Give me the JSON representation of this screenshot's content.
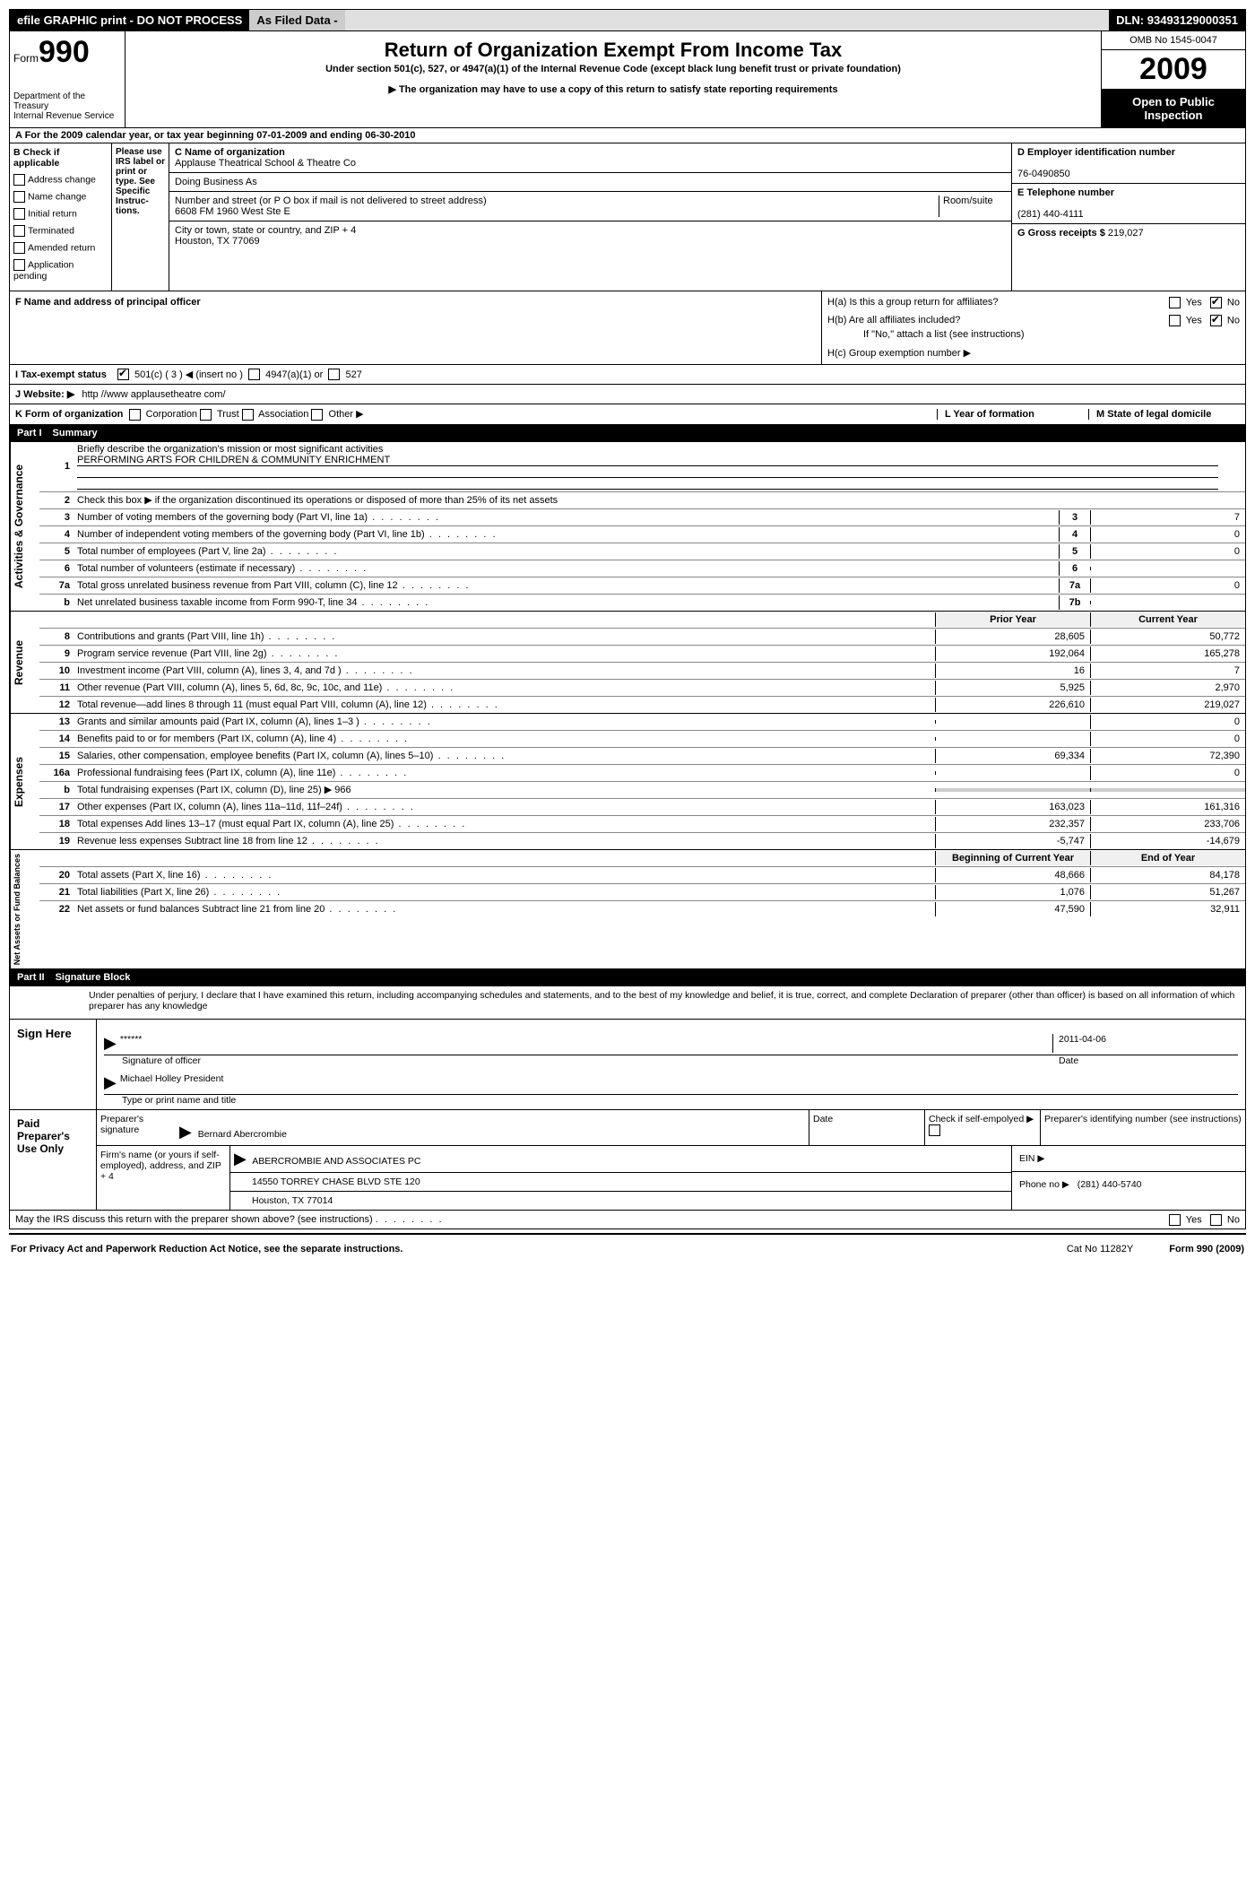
{
  "topbar": {
    "efile": "efile GRAPHIC print - DO NOT PROCESS",
    "asfiled": "As Filed Data -",
    "dln_label": "DLN:",
    "dln": "93493129000351"
  },
  "header": {
    "form_label": "Form",
    "form_num": "990",
    "dept": "Department of the Treasury\nInternal Revenue Service",
    "title": "Return of Organization Exempt From Income Tax",
    "subtitle1": "Under section 501(c), 527, or 4947(a)(1) of the Internal Revenue Code (except black lung benefit trust or private foundation)",
    "subtitle2": "▶ The organization may have to use a copy of this return to satisfy state reporting requirements",
    "omb": "OMB No 1545-0047",
    "year": "2009",
    "inspect": "Open to Public Inspection"
  },
  "row_a": "A  For the 2009 calendar year, or tax year beginning 07-01-2009    and ending 06-30-2010",
  "check_b": {
    "title": "B Check if applicable",
    "items": [
      "Address change",
      "Name change",
      "Initial return",
      "Terminated",
      "Amended return",
      "Application pending"
    ]
  },
  "please": "Please use IRS label or print or type. See Specific Instruc-tions.",
  "org": {
    "c_label": "C Name of organization",
    "c_name": "Applause Theatrical School & Theatre Co",
    "dba_label": "Doing Business As",
    "addr_label": "Number and street (or P O  box if mail is not delivered to street address)",
    "room_label": "Room/suite",
    "addr": "6608 FM 1960 West Ste E",
    "city_label": "City or town, state or country, and ZIP + 4",
    "city": "Houston, TX  77069"
  },
  "right": {
    "d_label": "D Employer identification number",
    "d_val": "76-0490850",
    "e_label": "E Telephone number",
    "e_val": "(281) 440-4111",
    "g_label": "G Gross receipts $",
    "g_val": "219,027"
  },
  "row_f": {
    "left": "F    Name and address of principal officer",
    "ha": "H(a)  Is this a group return for affiliates?",
    "hb": "H(b)  Are all affiliates included?",
    "hb_note": "If \"No,\" attach a list  (see instructions)",
    "hc": "H(c)   Group exemption number ▶"
  },
  "row_i": {
    "label": "I   Tax-exempt status",
    "opt1": "501(c) ( 3 ) ◀ (insert no )",
    "opt2": "4947(a)(1) or",
    "opt3": "527"
  },
  "row_j": {
    "label": "J  Website: ▶",
    "val": "http //www applausetheatre com/"
  },
  "row_k": {
    "label": "K Form of organization",
    "opts": [
      "Corporation",
      "Trust",
      "Association",
      "Other ▶"
    ],
    "l": "L Year of formation",
    "m": "M State of legal domicile"
  },
  "part1": {
    "num": "Part I",
    "title": "Summary"
  },
  "gov": {
    "label": "Activities & Governance",
    "l1a": "Briefly describe the organization's mission or most significant activities",
    "l1b": "PERFORMING ARTS FOR CHILDREN & COMMUNITY ENRICHMENT",
    "l2": "Check this box ▶        if the organization discontinued its operations or disposed of more than 25% of its net assets",
    "l3": "Number of voting members of the governing body (Part VI, line 1a)",
    "l3v": "7",
    "l4": "Number of independent voting members of the governing body (Part VI, line 1b)",
    "l4v": "0",
    "l5": "Total number of employees (Part V, line 2a)",
    "l5v": "0",
    "l6": "Total number of volunteers (estimate if necessary)",
    "l6v": "",
    "l7a": "Total gross unrelated business revenue from Part VIII, column (C), line 12",
    "l7av": "0",
    "l7b": "Net unrelated business taxable income from Form 990-T, line 34",
    "l7bv": ""
  },
  "rev": {
    "label": "Revenue",
    "col1": "Prior Year",
    "col2": "Current Year",
    "rows": [
      {
        "n": "8",
        "d": "Contributions and grants (Part VIII, line 1h)",
        "p": "28,605",
        "c": "50,772"
      },
      {
        "n": "9",
        "d": "Program service revenue (Part VIII, line 2g)",
        "p": "192,064",
        "c": "165,278"
      },
      {
        "n": "10",
        "d": "Investment income (Part VIII, column (A), lines 3, 4, and 7d )",
        "p": "16",
        "c": "7"
      },
      {
        "n": "11",
        "d": "Other revenue (Part VIII, column (A), lines 5, 6d, 8c, 9c, 10c, and 11e)",
        "p": "5,925",
        "c": "2,970"
      },
      {
        "n": "12",
        "d": "Total revenue—add lines 8 through 11 (must equal Part VIII, column (A), line 12)",
        "p": "226,610",
        "c": "219,027"
      }
    ]
  },
  "exp": {
    "label": "Expenses",
    "rows": [
      {
        "n": "13",
        "d": "Grants and similar amounts paid (Part IX, column (A), lines 1–3 )",
        "p": "",
        "c": "0"
      },
      {
        "n": "14",
        "d": "Benefits paid to or for members (Part IX, column (A), line 4)",
        "p": "",
        "c": "0"
      },
      {
        "n": "15",
        "d": "Salaries, other compensation, employee benefits (Part IX, column (A), lines 5–10)",
        "p": "69,334",
        "c": "72,390"
      },
      {
        "n": "16a",
        "d": "Professional fundraising fees (Part IX, column (A), line 11e)",
        "p": "",
        "c": "0"
      },
      {
        "n": "b",
        "d": "Total fundraising expenses (Part IX, column (D), line 25) ▶ 966",
        "p": "—",
        "c": "—"
      },
      {
        "n": "17",
        "d": "Other expenses (Part IX, column (A), lines 11a–11d, 11f–24f)",
        "p": "163,023",
        "c": "161,316"
      },
      {
        "n": "18",
        "d": "Total expenses  Add lines 13–17 (must equal Part IX, column (A), line 25)",
        "p": "232,357",
        "c": "233,706"
      },
      {
        "n": "19",
        "d": "Revenue less expenses  Subtract line 18 from line 12",
        "p": "-5,747",
        "c": "-14,679"
      }
    ]
  },
  "net": {
    "label": "Net Assets or Fund Balances",
    "col1": "Beginning of Current Year",
    "col2": "End of Year",
    "rows": [
      {
        "n": "20",
        "d": "Total assets (Part X, line 16)",
        "p": "48,666",
        "c": "84,178"
      },
      {
        "n": "21",
        "d": "Total liabilities (Part X, line 26)",
        "p": "1,076",
        "c": "51,267"
      },
      {
        "n": "22",
        "d": "Net assets or fund balances  Subtract line 21 from line 20",
        "p": "47,590",
        "c": "32,911"
      }
    ]
  },
  "part2": {
    "num": "Part II",
    "title": "Signature Block"
  },
  "sig": {
    "penalty": "Under penalties of perjury, I declare that I have examined this return, including accompanying schedules and statements, and to the best of my knowledge and belief, it is true, correct, and complete  Declaration of preparer (other than officer) is based on all information of which preparer has any knowledge",
    "sign_here": "Sign Here",
    "stars": "******",
    "sig_officer": "Signature of officer",
    "date_label": "Date",
    "date": "2011-04-06",
    "name": "Michael Holley  President",
    "name_label": "Type or print name and title",
    "paid": "Paid Preparer's Use Only",
    "prep_sig_label": "Preparer's signature",
    "prep_name": "Bernard Abercrombie",
    "date2": "Date",
    "checkif": "Check if self-empolyed ▶",
    "pin_label": "Preparer's identifying number (see instructions)",
    "firm_label": "Firm's name (or yours if self-employed), address, and ZIP + 4",
    "firm_name": "ABERCROMBIE AND ASSOCIATES PC",
    "firm_addr": "14550 TORREY CHASE BLVD STE 120",
    "firm_city": "Houston, TX  77014",
    "ein_label": "EIN ▶",
    "phone_label": "Phone no  ▶",
    "phone": "(281) 440-5740",
    "discuss": "May the IRS discuss this return with the preparer shown above? (see instructions)"
  },
  "footer": {
    "left": "For Privacy Act and Paperwork Reduction Act Notice, see the separate instructions.",
    "mid": "Cat  No  11282Y",
    "right": "Form 990 (2009)"
  }
}
